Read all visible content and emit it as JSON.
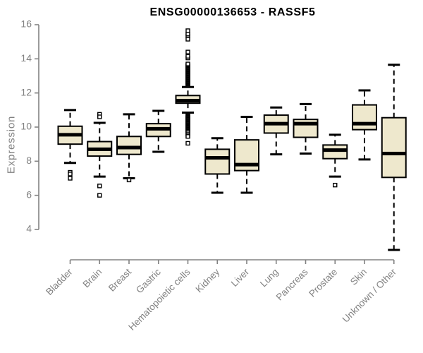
{
  "chart_data": {
    "type": "boxplot",
    "title": "ENSG00000136653 - RASSF5",
    "ylabel": "Expression",
    "xlabel": "",
    "ylim": [
      4,
      16
    ],
    "yticks": [
      4,
      6,
      8,
      10,
      12,
      14,
      16
    ],
    "grid": false,
    "legend": "none",
    "categories": [
      "Bladder",
      "Brain",
      "Breast",
      "Gastric",
      "Hematopoietic cells",
      "Kidney",
      "Liver",
      "Lung",
      "Pancreas",
      "Prostate",
      "Skin",
      "Unknown / Other"
    ],
    "boxes": [
      {
        "label": "Bladder",
        "whisker_low": 7.9,
        "q1": 9.0,
        "median": 9.55,
        "q3": 10.05,
        "whisker_high": 11.0,
        "outliers": [
          7.35,
          7.25,
          7.0
        ]
      },
      {
        "label": "Brain",
        "whisker_low": 7.1,
        "q1": 8.3,
        "median": 8.7,
        "q3": 9.15,
        "whisker_high": 10.25,
        "outliers": [
          10.75,
          10.6,
          6.55,
          6.0
        ]
      },
      {
        "label": "Breast",
        "whisker_low": 7.0,
        "q1": 8.4,
        "median": 8.8,
        "q3": 9.45,
        "whisker_high": 10.75,
        "outliers": [
          6.9
        ]
      },
      {
        "label": "Gastric",
        "whisker_low": 8.55,
        "q1": 9.45,
        "median": 9.9,
        "q3": 10.2,
        "whisker_high": 10.95,
        "outliers": []
      },
      {
        "label": "Hematopoietic cells",
        "whisker_low": 10.85,
        "q1": 11.4,
        "median": 11.55,
        "q3": 11.85,
        "whisker_high": 12.35,
        "outliers": [
          12.45,
          12.5,
          12.55,
          12.6,
          12.65,
          12.7,
          12.75,
          12.8,
          12.85,
          12.9,
          12.95,
          13.0,
          13.05,
          13.1,
          13.15,
          13.2,
          13.25,
          13.3,
          13.35,
          13.4,
          13.45,
          13.5,
          13.55,
          13.6,
          13.65,
          13.7,
          14.05,
          14.15,
          14.4,
          15.15,
          15.35,
          15.45,
          15.65,
          10.7,
          10.65,
          10.6,
          10.55,
          10.5,
          10.45,
          10.4,
          10.35,
          10.3,
          10.25,
          10.2,
          10.15,
          10.1,
          10.05,
          10.0,
          9.95,
          9.9,
          9.85,
          9.8,
          9.75,
          9.7,
          9.6,
          9.5,
          9.45,
          9.05
        ]
      },
      {
        "label": "Kidney",
        "whisker_low": 6.15,
        "q1": 7.25,
        "median": 8.2,
        "q3": 8.7,
        "whisker_high": 9.35,
        "outliers": []
      },
      {
        "label": "Liver",
        "whisker_low": 6.15,
        "q1": 7.45,
        "median": 7.8,
        "q3": 9.25,
        "whisker_high": 10.6,
        "outliers": []
      },
      {
        "label": "Lung",
        "whisker_low": 8.4,
        "q1": 9.65,
        "median": 10.2,
        "q3": 10.7,
        "whisker_high": 11.15,
        "outliers": []
      },
      {
        "label": "Pancreas",
        "whisker_low": 8.45,
        "q1": 9.4,
        "median": 10.2,
        "q3": 10.45,
        "whisker_high": 11.35,
        "outliers": []
      },
      {
        "label": "Prostate",
        "whisker_low": 7.1,
        "q1": 8.15,
        "median": 8.65,
        "q3": 8.95,
        "whisker_high": 9.55,
        "outliers": [
          6.6
        ]
      },
      {
        "label": "Skin",
        "whisker_low": 8.1,
        "q1": 9.85,
        "median": 10.2,
        "q3": 11.3,
        "whisker_high": 12.15,
        "outliers": []
      },
      {
        "label": "Unknown / Other",
        "whisker_low": 2.8,
        "q1": 7.05,
        "median": 8.45,
        "q3": 10.55,
        "whisker_high": 13.65,
        "outliers": []
      }
    ],
    "colors": {
      "box_fill": "#EEE8CD",
      "box_border": "#000000",
      "median": "#000000",
      "whisker": "#000000",
      "outlier": "#000000",
      "axis": "#828282",
      "tick_label": "#828282",
      "title": "#000000",
      "background": "#ffffff"
    }
  }
}
